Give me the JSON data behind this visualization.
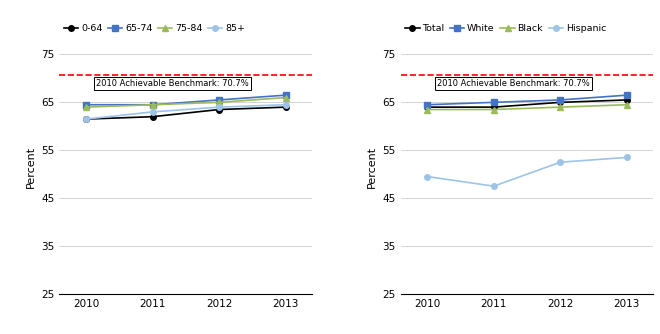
{
  "years": [
    2010,
    2011,
    2012,
    2013
  ],
  "benchmark": 70.7,
  "benchmark_label": "2010 Achievable Benchmark: 70.7%",
  "ylim": [
    25,
    78
  ],
  "yticks": [
    25,
    35,
    45,
    55,
    65,
    75
  ],
  "ylabel": "Percent",
  "chart1": {
    "series": {
      "0-64": [
        61.5,
        62.0,
        63.5,
        64.0
      ],
      "65-74": [
        64.5,
        64.5,
        65.5,
        66.5
      ],
      "75-84": [
        64.0,
        64.5,
        65.0,
        66.0
      ],
      "85+": [
        61.5,
        63.0,
        64.0,
        64.5
      ]
    },
    "colors": {
      "0-64": "#000000",
      "65-74": "#4472C4",
      "75-84": "#9BBB59",
      "85+": "#9DC3E6"
    },
    "markers": {
      "0-64": "o",
      "65-74": "s",
      "75-84": "^",
      "85+": "o"
    },
    "legend_order": [
      "0-64",
      "65-74",
      "75-84",
      "85+"
    ]
  },
  "chart2": {
    "series": {
      "Total": [
        64.0,
        64.0,
        65.0,
        65.5
      ],
      "White": [
        64.5,
        65.0,
        65.5,
        66.5
      ],
      "Black": [
        63.5,
        63.5,
        64.0,
        64.5
      ],
      "Hispanic": [
        49.5,
        47.5,
        52.5,
        53.5
      ]
    },
    "colors": {
      "Total": "#000000",
      "White": "#4472C4",
      "Black": "#9BBB59",
      "Hispanic": "#9DC3E6"
    },
    "markers": {
      "Total": "o",
      "White": "s",
      "Black": "^",
      "Hispanic": "o"
    },
    "legend_order": [
      "Total",
      "White",
      "Black",
      "Hispanic"
    ]
  }
}
